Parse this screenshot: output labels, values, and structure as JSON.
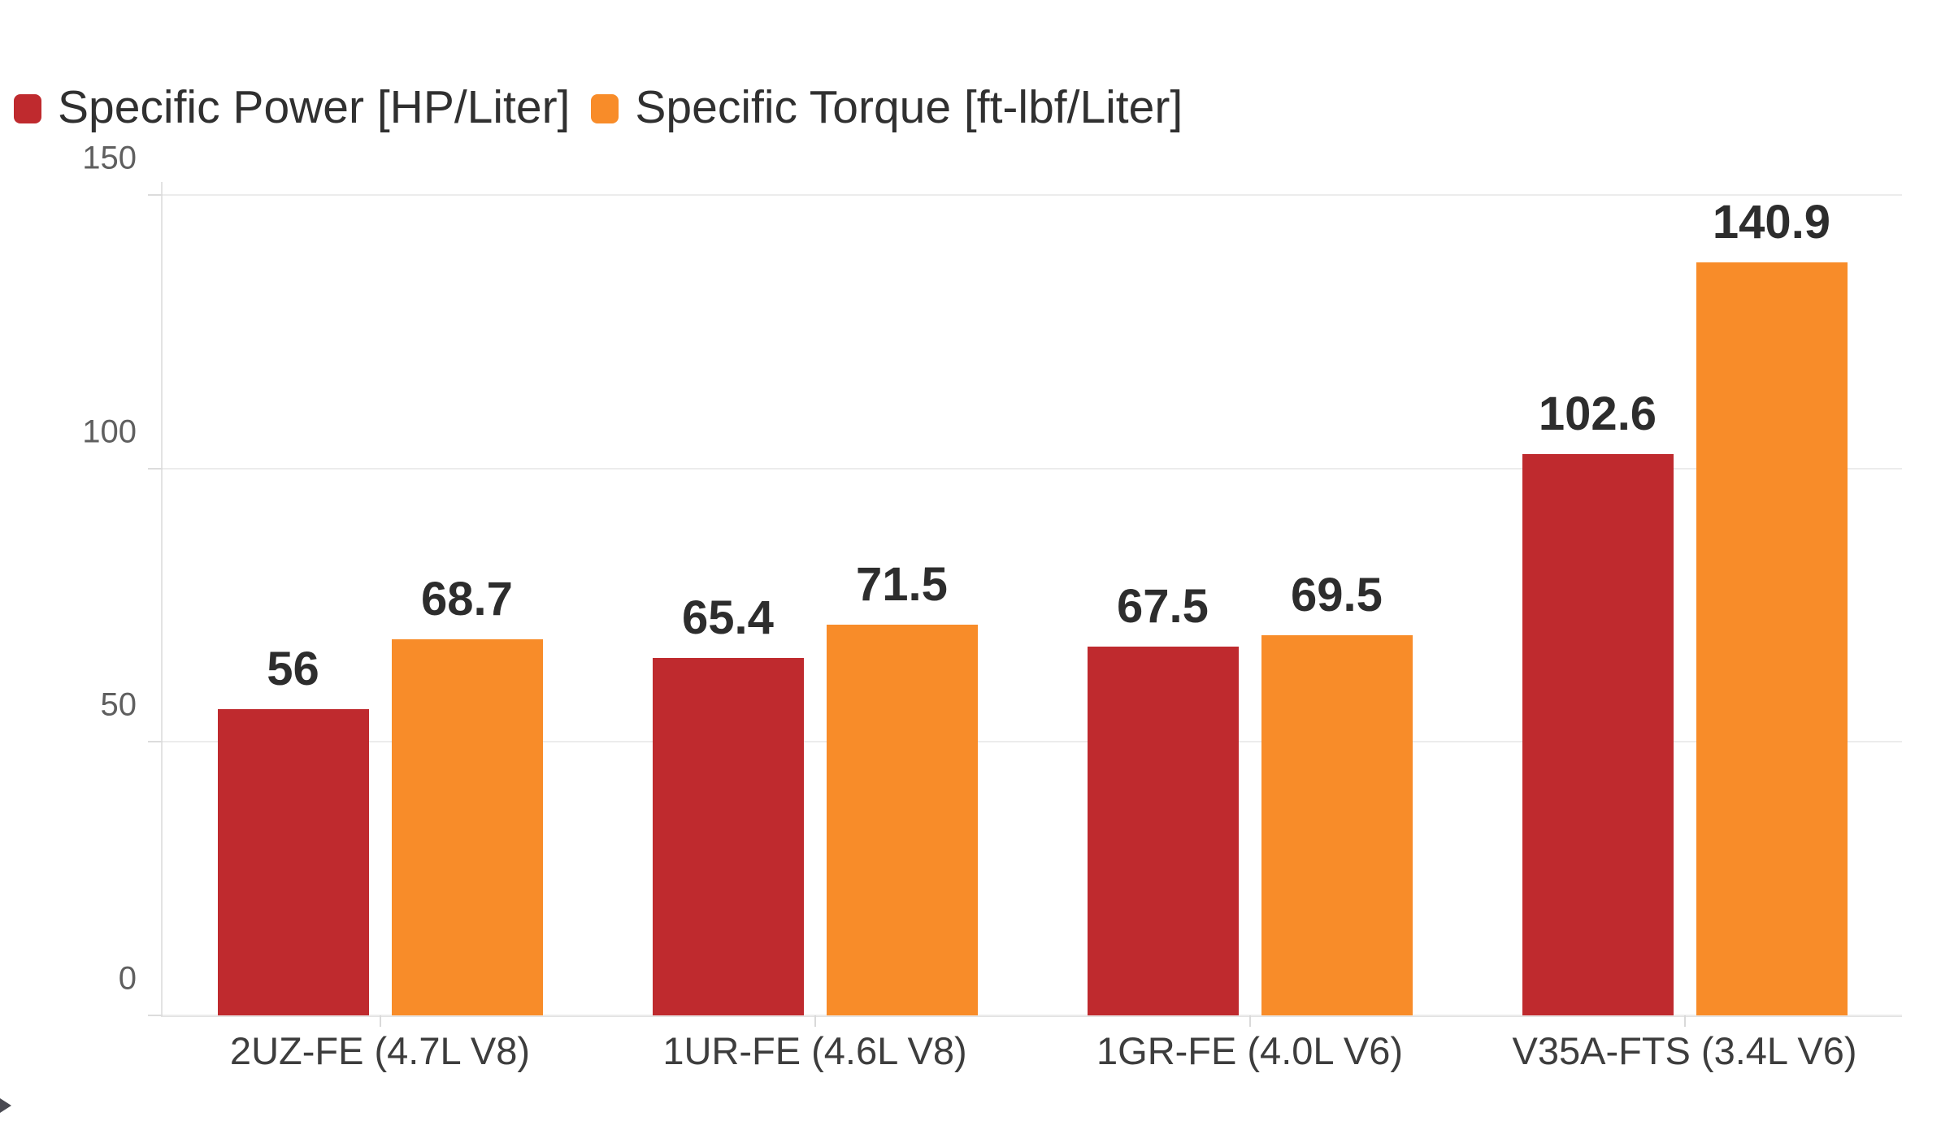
{
  "page": {
    "background": "#ffffff"
  },
  "chart_data": {
    "type": "bar",
    "title": "",
    "xlabel": "",
    "ylabel": "",
    "categories": [
      "2UZ-FE (4.7L V8)",
      "1UR-FE (4.6L V8)",
      "1GR-FE (4.0L V6)",
      "V35A-FTS (3.4L V6)"
    ],
    "series": [
      {
        "name": "Specific Power [HP/Liter]",
        "color": "#bf2a2e",
        "values": [
          56,
          65.4,
          67.5,
          102.6
        ],
        "labels": [
          "56",
          "65.4",
          "67.5",
          "102.6"
        ]
      },
      {
        "name": "Specific Torque [ft-lbf/Liter]",
        "color": "#f88c29",
        "values": [
          68.7,
          71.5,
          69.5,
          140.9
        ],
        "labels": [
          "68.7",
          "71.5",
          "69.5",
          "140.9"
        ]
      }
    ],
    "ylim": [
      0,
      150
    ],
    "y_ticks": [
      0,
      50,
      100,
      150
    ],
    "grid": true,
    "legend_position": "top-left",
    "bar_value_labels_shown": true
  },
  "colors": {
    "gridline": "#ececec",
    "axis_line": "#e3e3e3",
    "y_tick_text": "#5f5f5f",
    "x_label_text": "#3d3d3d",
    "value_label_text": "#2d2d2d",
    "legend_text": "#303030"
  }
}
